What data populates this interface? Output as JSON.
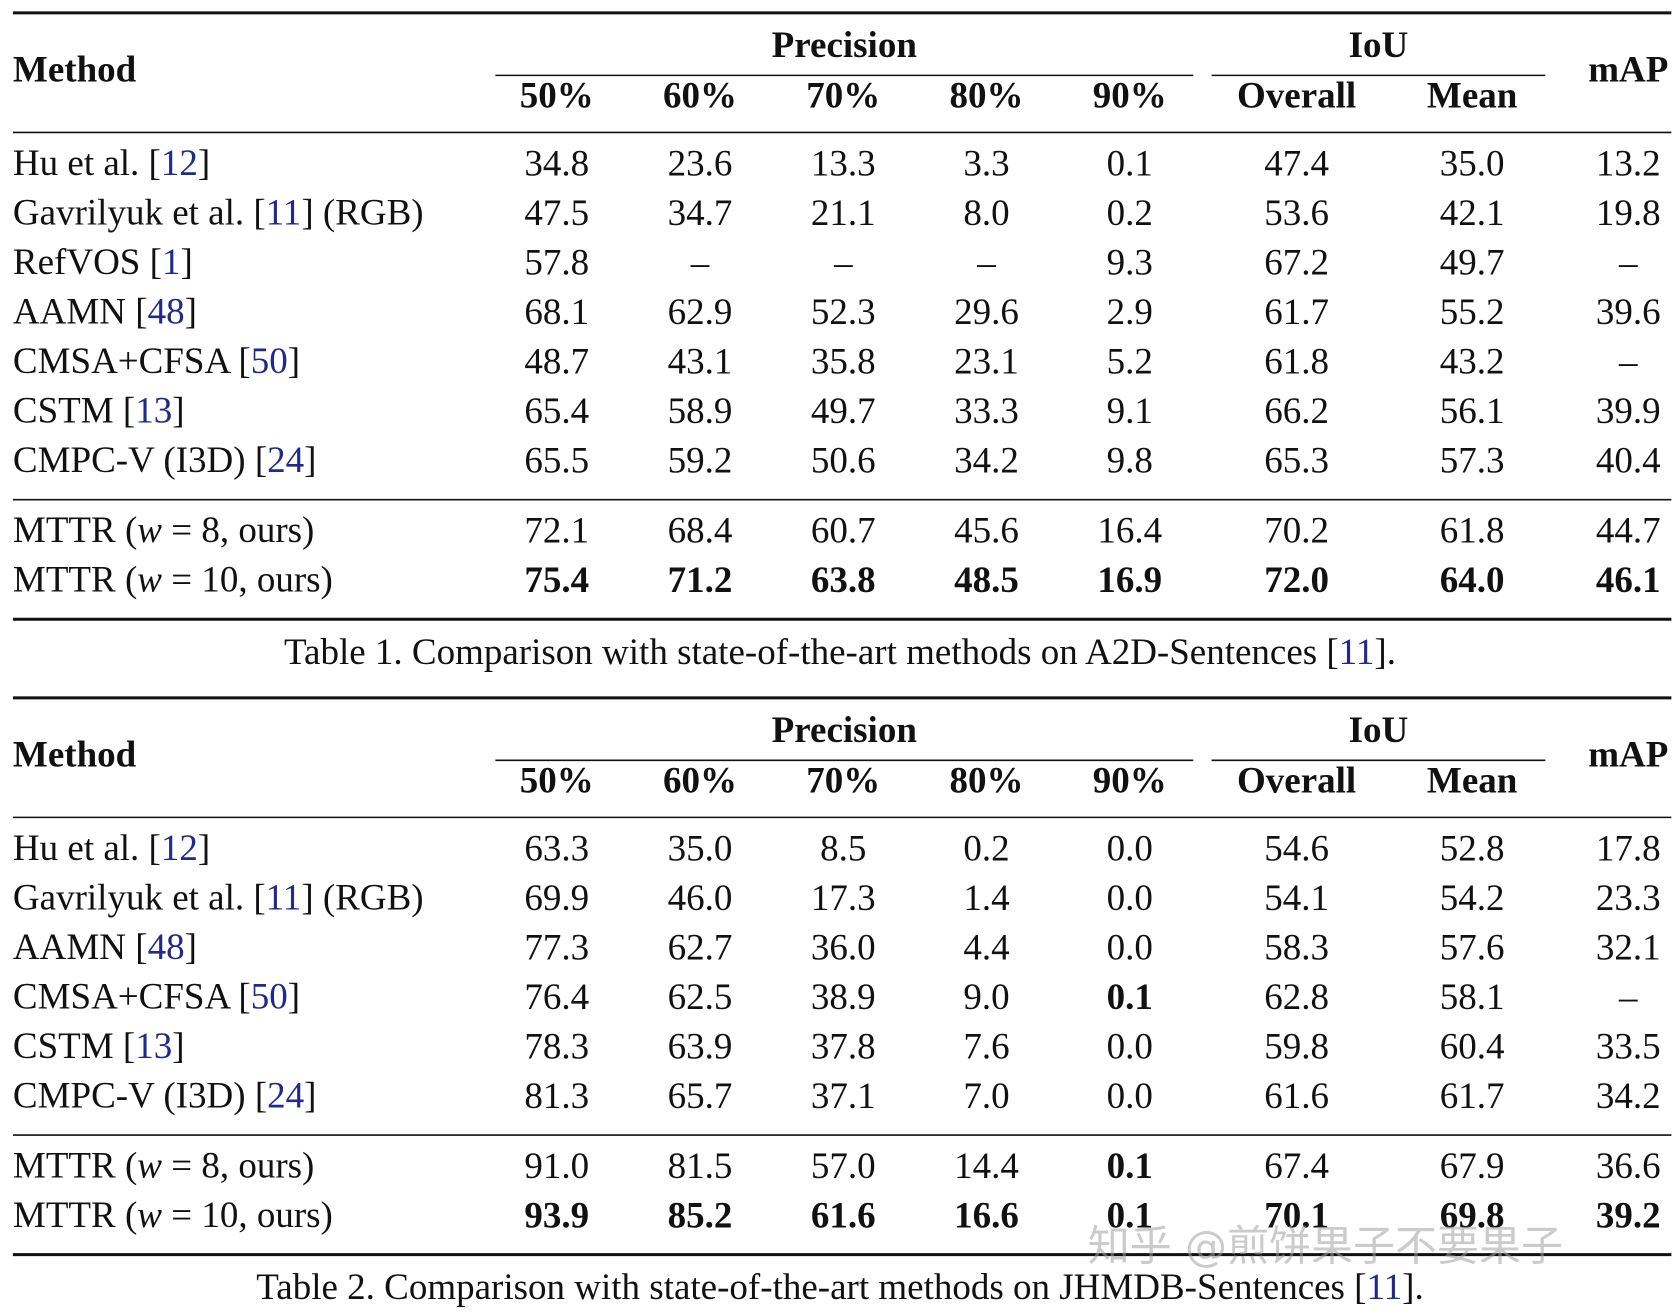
{
  "tables": [
    {
      "header": {
        "method": "Method",
        "groups": [
          {
            "label": "Precision",
            "columns": [
              "50%",
              "60%",
              "70%",
              "80%",
              "90%"
            ]
          },
          {
            "label": "IoU",
            "columns": [
              "Overall",
              "Mean"
            ]
          }
        ],
        "last": "mAP"
      },
      "sections": [
        {
          "rows": [
            {
              "method": [
                {
                  "text": "Hu et al. ["
                },
                {
                  "text": "12",
                  "ref": true
                },
                {
                  "text": "]"
                }
              ],
              "cells": [
                "34.8",
                "23.6",
                "13.3",
                "3.3",
                "0.1",
                "47.4",
                "35.0",
                "13.2"
              ],
              "bold_cells": []
            },
            {
              "method": [
                {
                  "text": "Gavrilyuk et al. ["
                },
                {
                  "text": "11",
                  "ref": true
                },
                {
                  "text": "] (RGB)"
                }
              ],
              "cells": [
                "47.5",
                "34.7",
                "21.1",
                "8.0",
                "0.2",
                "53.6",
                "42.1",
                "19.8"
              ],
              "bold_cells": []
            },
            {
              "method": [
                {
                  "text": "RefVOS ["
                },
                {
                  "text": "1",
                  "ref": true
                },
                {
                  "text": "]"
                }
              ],
              "cells": [
                "57.8",
                "–",
                "–",
                "–",
                "9.3",
                "67.2",
                "49.7",
                "–"
              ],
              "bold_cells": []
            },
            {
              "method": [
                {
                  "text": "AAMN ["
                },
                {
                  "text": "48",
                  "ref": true
                },
                {
                  "text": "]"
                }
              ],
              "cells": [
                "68.1",
                "62.9",
                "52.3",
                "29.6",
                "2.9",
                "61.7",
                "55.2",
                "39.6"
              ],
              "bold_cells": []
            },
            {
              "method": [
                {
                  "text": "CMSA+CFSA ["
                },
                {
                  "text": "50",
                  "ref": true
                },
                {
                  "text": "]"
                }
              ],
              "cells": [
                "48.7",
                "43.1",
                "35.8",
                "23.1",
                "5.2",
                "61.8",
                "43.2",
                "–"
              ],
              "bold_cells": []
            },
            {
              "method": [
                {
                  "text": "CSTM ["
                },
                {
                  "text": "13",
                  "ref": true
                },
                {
                  "text": "]"
                }
              ],
              "cells": [
                "65.4",
                "58.9",
                "49.7",
                "33.3",
                "9.1",
                "66.2",
                "56.1",
                "39.9"
              ],
              "bold_cells": []
            },
            {
              "method": [
                {
                  "text": "CMPC-V (I3D) ["
                },
                {
                  "text": "24",
                  "ref": true
                },
                {
                  "text": "]"
                }
              ],
              "cells": [
                "65.5",
                "59.2",
                "50.6",
                "34.2",
                "9.8",
                "65.3",
                "57.3",
                "40.4"
              ],
              "bold_cells": []
            }
          ]
        },
        {
          "rows": [
            {
              "method": [
                {
                  "text": "MTTR ("
                },
                {
                  "text": "w",
                  "italic": true
                },
                {
                  "text": " = 8, ours)"
                }
              ],
              "cells": [
                "72.1",
                "68.4",
                "60.7",
                "45.6",
                "16.4",
                "70.2",
                "61.8",
                "44.7"
              ],
              "bold_cells": []
            },
            {
              "method": [
                {
                  "text": "MTTR ("
                },
                {
                  "text": "w",
                  "italic": true
                },
                {
                  "text": " = 10, ours)"
                }
              ],
              "cells": [
                "75.4",
                "71.2",
                "63.8",
                "48.5",
                "16.9",
                "72.0",
                "64.0",
                "46.1"
              ],
              "bold_cells": [
                0,
                1,
                2,
                3,
                4,
                5,
                6,
                7
              ]
            }
          ]
        }
      ],
      "caption": [
        {
          "text": "Table 1. Comparison with state-of-the-art methods on A2D-Sentences ["
        },
        {
          "text": "11",
          "ref": true
        },
        {
          "text": "]."
        }
      ]
    },
    {
      "header": {
        "method": "Method",
        "groups": [
          {
            "label": "Precision",
            "columns": [
              "50%",
              "60%",
              "70%",
              "80%",
              "90%"
            ]
          },
          {
            "label": "IoU",
            "columns": [
              "Overall",
              "Mean"
            ]
          }
        ],
        "last": "mAP"
      },
      "sections": [
        {
          "rows": [
            {
              "method": [
                {
                  "text": "Hu et al. ["
                },
                {
                  "text": "12",
                  "ref": true
                },
                {
                  "text": "]"
                }
              ],
              "cells": [
                "63.3",
                "35.0",
                "8.5",
                "0.2",
                "0.0",
                "54.6",
                "52.8",
                "17.8"
              ],
              "bold_cells": []
            },
            {
              "method": [
                {
                  "text": "Gavrilyuk et al. ["
                },
                {
                  "text": "11",
                  "ref": true
                },
                {
                  "text": "] (RGB)"
                }
              ],
              "cells": [
                "69.9",
                "46.0",
                "17.3",
                "1.4",
                "0.0",
                "54.1",
                "54.2",
                "23.3"
              ],
              "bold_cells": []
            },
            {
              "method": [
                {
                  "text": "AAMN ["
                },
                {
                  "text": "48",
                  "ref": true
                },
                {
                  "text": "]"
                }
              ],
              "cells": [
                "77.3",
                "62.7",
                "36.0",
                "4.4",
                "0.0",
                "58.3",
                "57.6",
                "32.1"
              ],
              "bold_cells": []
            },
            {
              "method": [
                {
                  "text": "CMSA+CFSA ["
                },
                {
                  "text": "50",
                  "ref": true
                },
                {
                  "text": "]"
                }
              ],
              "cells": [
                "76.4",
                "62.5",
                "38.9",
                "9.0",
                "0.1",
                "62.8",
                "58.1",
                "–"
              ],
              "bold_cells": [
                4
              ]
            },
            {
              "method": [
                {
                  "text": "CSTM ["
                },
                {
                  "text": "13",
                  "ref": true
                },
                {
                  "text": "]"
                }
              ],
              "cells": [
                "78.3",
                "63.9",
                "37.8",
                "7.6",
                "0.0",
                "59.8",
                "60.4",
                "33.5"
              ],
              "bold_cells": []
            },
            {
              "method": [
                {
                  "text": "CMPC-V (I3D) ["
                },
                {
                  "text": "24",
                  "ref": true
                },
                {
                  "text": "]"
                }
              ],
              "cells": [
                "81.3",
                "65.7",
                "37.1",
                "7.0",
                "0.0",
                "61.6",
                "61.7",
                "34.2"
              ],
              "bold_cells": []
            }
          ]
        },
        {
          "rows": [
            {
              "method": [
                {
                  "text": "MTTR ("
                },
                {
                  "text": "w",
                  "italic": true
                },
                {
                  "text": " = 8, ours)"
                }
              ],
              "cells": [
                "91.0",
                "81.5",
                "57.0",
                "14.4",
                "0.1",
                "67.4",
                "67.9",
                "36.6"
              ],
              "bold_cells": [
                4
              ]
            },
            {
              "method": [
                {
                  "text": "MTTR ("
                },
                {
                  "text": "w",
                  "italic": true
                },
                {
                  "text": " = 10, ours)"
                }
              ],
              "cells": [
                "93.9",
                "85.2",
                "61.6",
                "16.6",
                "0.1",
                "70.1",
                "69.8",
                "39.2"
              ],
              "bold_cells": [
                0,
                1,
                2,
                3,
                4,
                5,
                6,
                7
              ]
            }
          ]
        }
      ],
      "caption": [
        {
          "text": "Table 2. Comparison with state-of-the-art methods on JHMDB-Sentences ["
        },
        {
          "text": "11",
          "ref": true
        },
        {
          "text": "]."
        }
      ]
    }
  ],
  "watermark": "知乎 @煎饼果子不要果子"
}
